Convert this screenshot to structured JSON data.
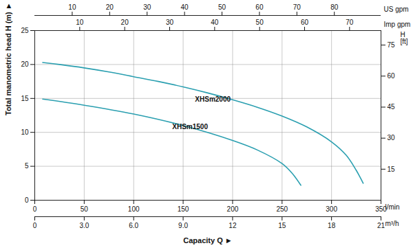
{
  "chart_data": {
    "type": "line",
    "xlabel": "Capacity Q ►",
    "xunit": "l/min",
    "xlim": [
      0,
      350
    ],
    "xticks": [
      0,
      50,
      100,
      150,
      200,
      250,
      300,
      350
    ],
    "x2unit": "m³/h",
    "x2lim": [
      0,
      21
    ],
    "x2ticks": [
      0,
      {
        "value": 3,
        "label": "3.0"
      },
      {
        "value": 6,
        "label": "6.0"
      },
      {
        "value": 9,
        "label": "9.0"
      },
      12,
      15,
      18,
      21
    ],
    "x3unit": "US gpm",
    "x3lim": [
      0,
      92.46
    ],
    "x3ticks": [
      10,
      20,
      30,
      40,
      50,
      60,
      70,
      80
    ],
    "x4unit": "Imp gpm",
    "x4lim": [
      0,
      76.99
    ],
    "x4ticks": [
      10,
      20,
      30,
      40,
      50,
      60,
      70
    ],
    "ylabel": "Total manometric head H (m) ►",
    "ylim": [
      0,
      25
    ],
    "yticks": [
      0,
      5,
      10,
      15,
      20,
      25
    ],
    "y2label": "H\n[ft]",
    "y2lim": [
      0,
      82.02
    ],
    "y2ticks": [
      15,
      30,
      45,
      60,
      75
    ],
    "grid": true,
    "series": [
      {
        "name": "XHSm2000",
        "color": "#2a9fb0",
        "label_at": [
          162,
          14.8
        ],
        "x": [
          8,
          25,
          50,
          75,
          100,
          125,
          150,
          175,
          200,
          225,
          250,
          275,
          300,
          315,
          325,
          332
        ],
        "values": [
          20.3,
          20.0,
          19.5,
          18.9,
          18.2,
          17.5,
          16.7,
          15.8,
          14.8,
          13.7,
          12.4,
          10.8,
          8.6,
          6.6,
          4.4,
          2.5
        ]
      },
      {
        "name": "XHSm1500",
        "color": "#2a9fb0",
        "label_at": [
          139,
          10.8
        ],
        "x": [
          8,
          50,
          100,
          150,
          200,
          225,
          250,
          260,
          269
        ],
        "values": [
          14.9,
          14.0,
          12.7,
          11.0,
          8.8,
          7.4,
          5.4,
          4.0,
          2.2
        ]
      }
    ]
  }
}
